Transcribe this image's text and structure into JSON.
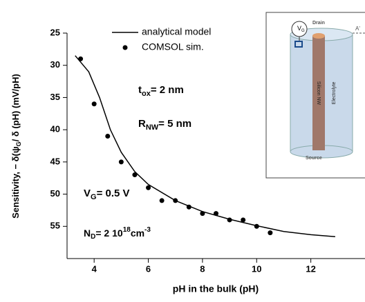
{
  "chart_data": {
    "type": "line",
    "x_label": "pH in the bulk (pH)",
    "y_label": [
      "Sensitivity,  − δ(ψ",
      "G",
      "/ δ (pH)  (mV/pH)"
    ],
    "series": [
      {
        "name": "analytical model",
        "style": "line",
        "color": "#000000",
        "x": [
          3.3,
          3.8,
          4.2,
          4.6,
          5,
          5.5,
          6,
          7,
          8,
          9,
          10,
          11,
          12,
          12.9
        ],
        "values": [
          28.5,
          31,
          35,
          40,
          43.5,
          46.5,
          48.5,
          51,
          52.7,
          53.9,
          54.9,
          55.8,
          56.3,
          56.6
        ]
      },
      {
        "name": "COMSOL sim.",
        "style": "points",
        "color": "#000000",
        "x": [
          3.5,
          4,
          4.5,
          5,
          5.5,
          6,
          6.5,
          7,
          7.5,
          8,
          8.5,
          9,
          9.5,
          10,
          10.5
        ],
        "values": [
          29,
          36,
          41,
          45,
          47,
          49,
          51,
          51,
          52,
          53,
          53,
          54,
          54,
          55,
          56
        ]
      }
    ],
    "xlim": [
      3,
      14
    ],
    "xticks": [
      4,
      6,
      8,
      10,
      12
    ],
    "ylim": [
      25,
      60
    ],
    "yticks": [
      25,
      30,
      35,
      40,
      45,
      50,
      55
    ],
    "y_reversed": true,
    "annotations": {
      "tox": [
        "t",
        "ox",
        "= 2 nm"
      ],
      "rnw": [
        "R",
        "NW",
        "= 5 nm"
      ],
      "vg": [
        "V",
        "G",
        "= 0.5 V"
      ],
      "nd": [
        "N",
        "D",
        "= 2 10",
        "18",
        "cm",
        "-3"
      ]
    },
    "inset_labels": {
      "vg": "V",
      "vg_sub": "G",
      "drain": "Drain",
      "source": "Source",
      "wire": "Silicon NW",
      "electrolyte": "Electrolyte",
      "section": "A'"
    }
  }
}
